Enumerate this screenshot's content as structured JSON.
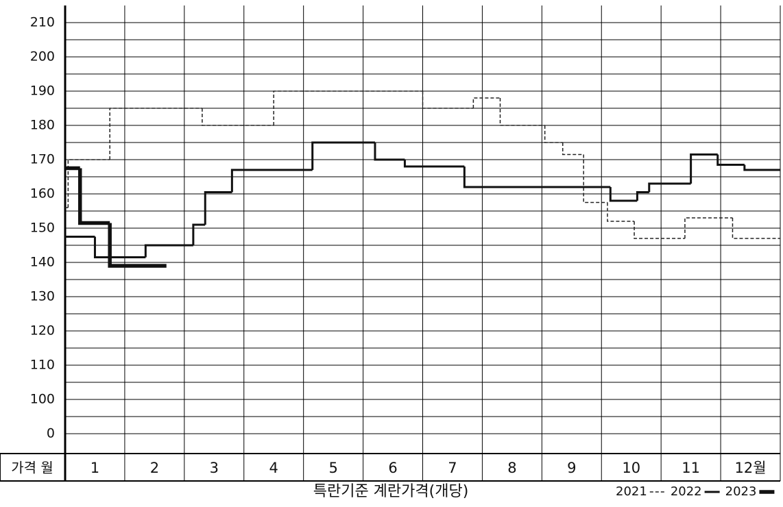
{
  "chart_data": {
    "type": "step-line",
    "title": "특란기준 계란가격(개당)",
    "corner_label": "가격 월",
    "y_break_label": "0",
    "categories": [
      "1",
      "2",
      "3",
      "4",
      "5",
      "6",
      "7",
      "8",
      "9",
      "10",
      "11",
      "12월"
    ],
    "xlim": [
      0,
      12
    ],
    "ylim": [
      85,
      215
    ],
    "yticks": [
      100,
      110,
      120,
      130,
      140,
      150,
      160,
      170,
      180,
      190,
      200,
      210
    ],
    "grid": true,
    "legend": "bottom-right",
    "series": [
      {
        "name": "2021",
        "color": "#222222",
        "dash": true,
        "width": 1.5,
        "x": [
          0,
          0.05,
          0.75,
          2.3,
          3.5,
          6,
          6.85,
          7.3,
          8.05,
          8.35,
          8.7,
          9.1,
          9.55,
          10.4,
          11.2,
          12
        ],
        "values": [
          156,
          170,
          185,
          180,
          190,
          185,
          188,
          180,
          175,
          171.5,
          157.5,
          152,
          147,
          153,
          147,
          147
        ]
      },
      {
        "name": "2022",
        "color": "#111111",
        "dash": false,
        "width": 3,
        "x": [
          0,
          0.5,
          1.35,
          2.15,
          2.35,
          2.8,
          4.15,
          5.2,
          5.7,
          6.7,
          9.15,
          9.6,
          9.8,
          10.5,
          10.95,
          11.4,
          12
        ],
        "values": [
          147.5,
          141.5,
          145,
          151,
          160.5,
          167,
          175,
          170,
          168,
          162,
          158,
          160.5,
          163,
          171.5,
          168.5,
          167,
          167
        ]
      },
      {
        "name": "2023",
        "color": "#111111",
        "dash": false,
        "width": 5.5,
        "x": [
          0,
          0.25,
          0.75,
          1.7
        ],
        "values": [
          167.5,
          151.5,
          139,
          139
        ]
      }
    ]
  }
}
